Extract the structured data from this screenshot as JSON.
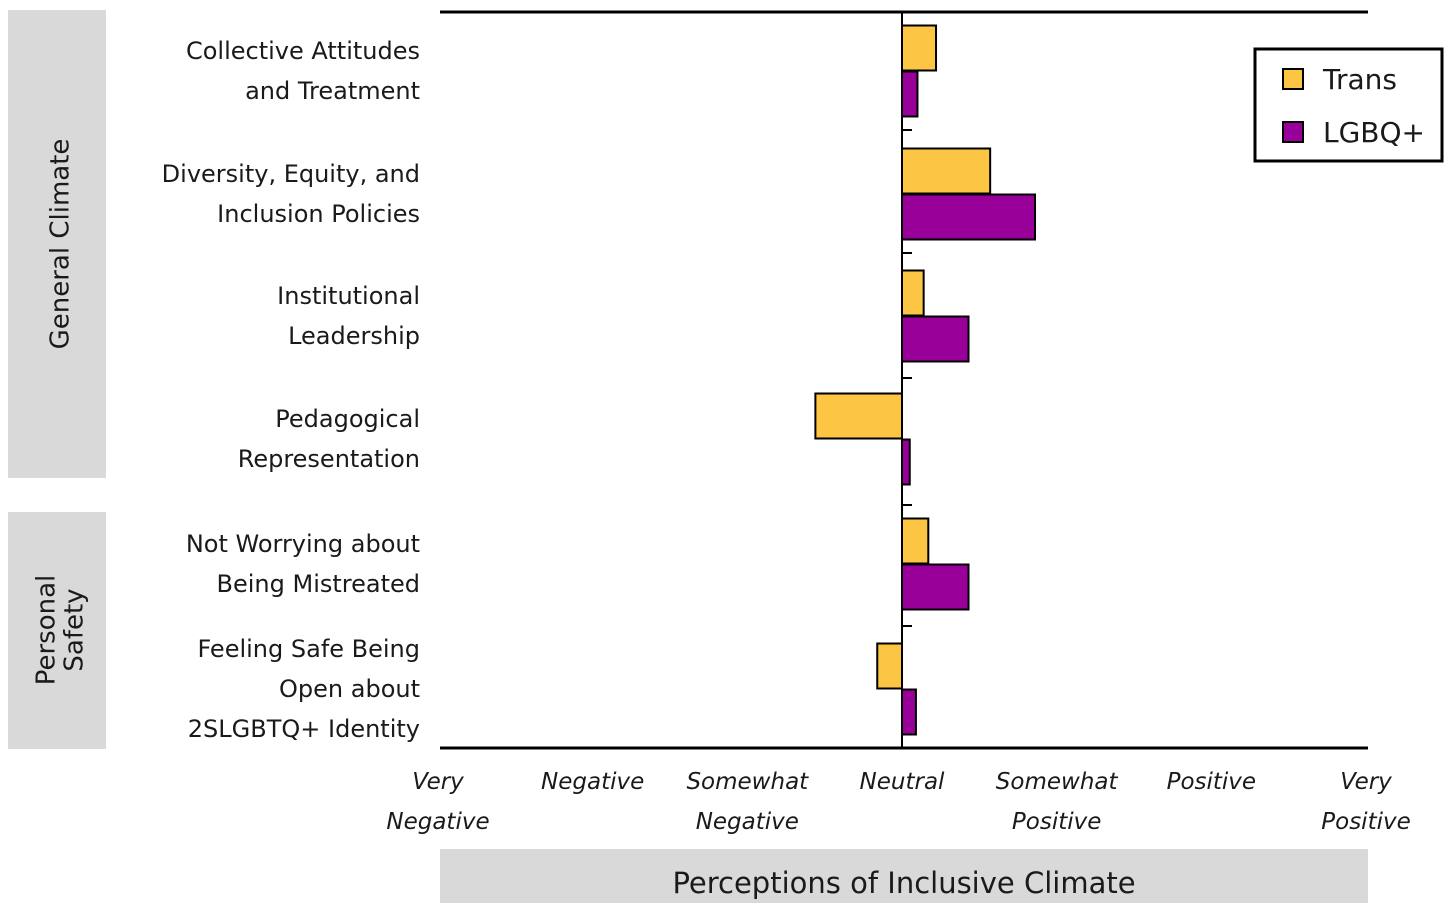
{
  "chart_data": {
    "type": "bar",
    "orientation": "horizontal",
    "xlabel": "Perceptions of Inclusive Climate",
    "xlim": [
      -3,
      3
    ],
    "x_ticks": [
      {
        "value": -3,
        "lines": [
          "Very",
          "Negative"
        ]
      },
      {
        "value": -2,
        "lines": [
          "Negative"
        ]
      },
      {
        "value": -1,
        "lines": [
          "Somewhat",
          "Negative"
        ]
      },
      {
        "value": 0,
        "lines": [
          "Neutral"
        ]
      },
      {
        "value": 1,
        "lines": [
          "Somewhat",
          "Positive"
        ]
      },
      {
        "value": 2,
        "lines": [
          "Positive"
        ]
      },
      {
        "value": 3,
        "lines": [
          "Very",
          "Positive"
        ]
      }
    ],
    "categories": [
      {
        "lines": [
          "Collective Attitudes",
          "and Treatment"
        ]
      },
      {
        "lines": [
          "Diversity, Equity, and",
          "Inclusion Policies"
        ]
      },
      {
        "lines": [
          "Institutional",
          "Leadership"
        ]
      },
      {
        "lines": [
          "Pedagogical",
          "Representation"
        ]
      },
      {
        "lines": [
          "Not Worrying about",
          "Being Mistreated"
        ]
      },
      {
        "lines": [
          "Feeling Safe Being",
          "Open about",
          "2SLGBTQ+ Identity"
        ]
      }
    ],
    "groups": [
      {
        "lines": [
          "General Climate"
        ],
        "categories": [
          0,
          1,
          2,
          3
        ]
      },
      {
        "lines": [
          "Personal",
          "Safety"
        ],
        "categories": [
          4,
          5
        ]
      }
    ],
    "series": [
      {
        "name": "Trans",
        "color": "#FCC543",
        "values": [
          0.22,
          0.57,
          0.14,
          -0.56,
          0.17,
          -0.16
        ]
      },
      {
        "name": "LGBQ+",
        "color": "#990099",
        "values": [
          0.1,
          0.86,
          0.43,
          0.05,
          0.43,
          0.09
        ]
      }
    ],
    "legend": {
      "position": "top-right"
    }
  }
}
